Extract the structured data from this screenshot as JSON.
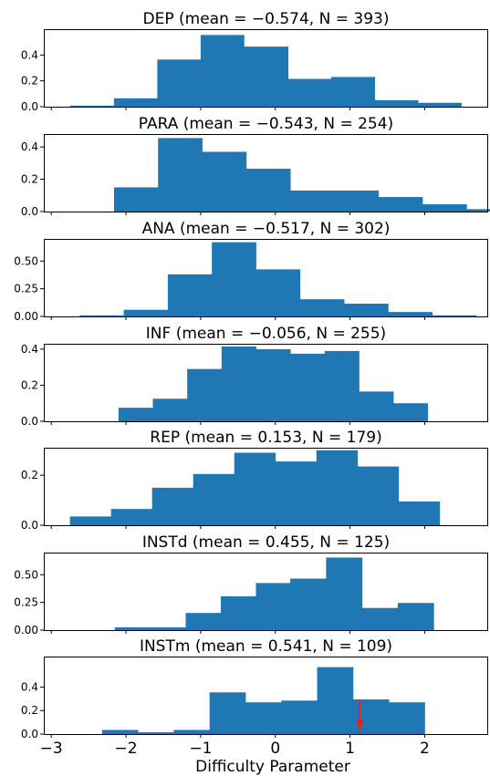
{
  "figure": {
    "xlabel": "Difficulty Parameter",
    "bar_color": "#1f77b4",
    "arrow_color": "#e8201c"
  },
  "chart_data": [
    {
      "type": "bar",
      "title": "DEP (mean = −0.574, N = 393)",
      "bin_edges": [
        -2.75,
        -2.16,
        -1.58,
        -1.0,
        -0.42,
        0.17,
        0.75,
        1.33,
        1.91,
        2.49
      ],
      "values": [
        0.008,
        0.065,
        0.365,
        0.555,
        0.465,
        0.215,
        0.23,
        0.05,
        0.03
      ],
      "ylim": [
        0,
        0.6
      ],
      "yticks": [
        0.0,
        0.2,
        0.4
      ],
      "ytick_labels": [
        "0.0",
        "0.2",
        "0.4"
      ]
    },
    {
      "type": "bar",
      "title": "PARA (mean = −0.543, N = 254)",
      "bin_edges": [
        -2.16,
        -1.57,
        -0.98,
        -0.39,
        0.2,
        0.79,
        1.38,
        1.97,
        2.56,
        3.15
      ],
      "values": [
        0.15,
        0.455,
        0.37,
        0.265,
        0.13,
        0.13,
        0.09,
        0.045,
        0.015
      ],
      "ylim": [
        0,
        0.48
      ],
      "yticks": [
        0.0,
        0.2,
        0.4
      ],
      "ytick_labels": [
        "0.0",
        "0.2",
        "0.4"
      ]
    },
    {
      "type": "bar",
      "title": "ANA (mean = −0.517, N = 302)",
      "bin_edges": [
        -2.62,
        -2.03,
        -1.44,
        -0.85,
        -0.26,
        0.33,
        0.92,
        1.51,
        2.1,
        2.69
      ],
      "values": [
        0.01,
        0.06,
        0.38,
        0.67,
        0.425,
        0.155,
        0.115,
        0.04,
        0.01
      ],
      "ylim": [
        0,
        0.7
      ],
      "yticks": [
        0.0,
        0.25,
        0.5
      ],
      "ytick_labels": [
        "0.00",
        "0.25",
        "0.50"
      ]
    },
    {
      "type": "bar",
      "title": "INF (mean = −0.056, N = 255)",
      "bin_edges": [
        -2.1,
        -1.64,
        -1.18,
        -0.72,
        -0.26,
        0.2,
        0.66,
        1.12,
        1.58,
        2.04
      ],
      "values": [
        0.075,
        0.125,
        0.29,
        0.415,
        0.4,
        0.375,
        0.39,
        0.165,
        0.1
      ],
      "ylim": [
        0,
        0.43
      ],
      "yticks": [
        0.0,
        0.2,
        0.4
      ],
      "ytick_labels": [
        "0.0",
        "0.2",
        "0.4"
      ]
    },
    {
      "type": "bar",
      "title": "REP (mean = 0.153, N = 179)",
      "bin_edges": [
        -2.75,
        -2.2,
        -1.65,
        -1.1,
        -0.55,
        0.0,
        0.55,
        1.1,
        1.65,
        2.2
      ],
      "values": [
        0.035,
        0.065,
        0.15,
        0.205,
        0.29,
        0.255,
        0.3,
        0.235,
        0.095
      ],
      "ylim": [
        0,
        0.31
      ],
      "yticks": [
        0.0,
        0.2
      ],
      "ytick_labels": [
        "0.0",
        "0.2"
      ]
    },
    {
      "type": "bar",
      "title": "INSTd (mean = 0.455, N = 125)",
      "bin_edges": [
        -2.15,
        -1.68,
        -1.2,
        -0.73,
        -0.26,
        0.2,
        0.68,
        1.16,
        1.64,
        2.12
      ],
      "values": [
        0.025,
        0.025,
        0.155,
        0.305,
        0.425,
        0.465,
        0.655,
        0.2,
        0.245
      ],
      "ylim": [
        0,
        0.7
      ],
      "yticks": [
        0.0,
        0.25,
        0.5
      ],
      "ytick_labels": [
        "0.00",
        "0.25",
        "0.50"
      ]
    },
    {
      "type": "bar",
      "title": "INSTm (mean = 0.541, N = 109)",
      "bin_edges": [
        -2.32,
        -1.84,
        -1.36,
        -0.88,
        -0.4,
        0.08,
        0.56,
        1.04,
        1.52,
        2.0
      ],
      "values": [
        0.035,
        0.015,
        0.035,
        0.355,
        0.27,
        0.285,
        0.57,
        0.295,
        0.27
      ],
      "ylim": [
        0,
        0.66
      ],
      "yticks": [
        0.0,
        0.2,
        0.4
      ],
      "ytick_labels": [
        "0.0",
        "0.2",
        "0.4"
      ],
      "annotation": {
        "type": "arrow",
        "x": 1.13
      }
    }
  ],
  "x_axis": {
    "xlim": [
      -3.1,
      2.85
    ],
    "ticks": [
      -3,
      -2,
      -1,
      0,
      1,
      2
    ],
    "tick_labels": [
      "−3",
      "−2",
      "−1",
      "0",
      "1",
      "2"
    ]
  }
}
